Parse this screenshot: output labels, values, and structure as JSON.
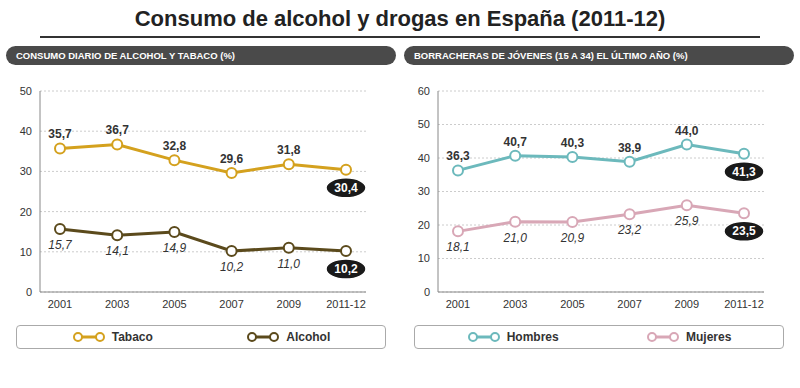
{
  "title": "Consumo de alcohol y drogas en España (2011-12)",
  "chart_data": [
    {
      "type": "line",
      "title": "CONSUMO DIARIO DE ALCOHOL Y TABACO (%)",
      "categories": [
        "2001",
        "2003",
        "2005",
        "2007",
        "2009",
        "2011-12"
      ],
      "series": [
        {
          "name": "Tabaco",
          "color": "#d4a11e",
          "values": [
            35.7,
            36.7,
            32.8,
            29.6,
            31.8,
            30.4
          ],
          "value_labels": [
            "35,7",
            "36,7",
            "32,8",
            "29,6",
            "31,8",
            "30,4"
          ]
        },
        {
          "name": "Alcohol",
          "color": "#5b4a1c",
          "values": [
            15.7,
            14.1,
            14.9,
            10.2,
            11.0,
            10.2
          ],
          "value_labels": [
            "15,7",
            "14,1",
            "14,9",
            "10,2",
            "11,0",
            "10,2"
          ]
        }
      ],
      "ylim": [
        0,
        50
      ],
      "yticks": [
        0,
        10,
        20,
        30,
        40,
        50
      ],
      "grid": true,
      "legend": "bottom",
      "data_labels": true,
      "marker": "circle"
    },
    {
      "type": "line",
      "title": "BORRACHERAS DE JÓVENES (15 A 34) EL ÚLTIMO AÑO (%)",
      "categories": [
        "2001",
        "2003",
        "2005",
        "2007",
        "2009",
        "2011-12"
      ],
      "series": [
        {
          "name": "Hombres",
          "color": "#6cb9bc",
          "values": [
            36.3,
            40.7,
            40.3,
            38.9,
            44.0,
            41.3
          ],
          "value_labels": [
            "36,3",
            "40,7",
            "40,3",
            "38,9",
            "44,0",
            "41,3"
          ]
        },
        {
          "name": "Mujeres",
          "color": "#d8a7b6",
          "values": [
            18.1,
            21.0,
            20.9,
            23.2,
            25.9,
            23.5
          ],
          "value_labels": [
            "18,1",
            "21,0",
            "20,9",
            "23,2",
            "25,9",
            "23,5"
          ]
        }
      ],
      "ylim": [
        0,
        60
      ],
      "yticks": [
        0,
        10,
        20,
        30,
        40,
        50,
        60
      ],
      "grid": true,
      "legend": "bottom",
      "data_labels": true,
      "marker": "circle"
    }
  ]
}
